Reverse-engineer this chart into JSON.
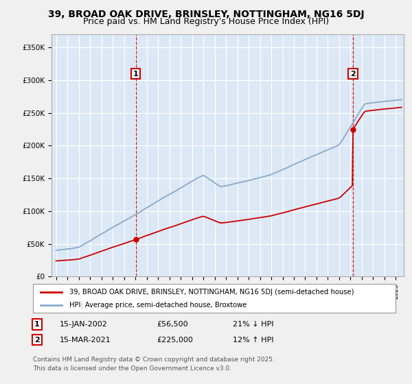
{
  "title": "39, BROAD OAK DRIVE, BRINSLEY, NOTTINGHAM, NG16 5DJ",
  "subtitle": "Price paid vs. HM Land Registry's House Price Index (HPI)",
  "ylabel_ticks": [
    "£0",
    "£50K",
    "£100K",
    "£150K",
    "£200K",
    "£250K",
    "£300K",
    "£350K"
  ],
  "ytick_values": [
    0,
    50000,
    100000,
    150000,
    200000,
    250000,
    300000,
    350000
  ],
  "ylim": [
    0,
    370000
  ],
  "xlim_start": 1994.6,
  "xlim_end": 2025.7,
  "t1": 2002.04,
  "t2": 2021.21,
  "p1": 56500,
  "p2": 225000,
  "annotation1": {
    "label": "1",
    "date": "15-JAN-2002",
    "price": "£56,500",
    "pct": "21% ↓ HPI"
  },
  "annotation2": {
    "label": "2",
    "date": "15-MAR-2021",
    "price": "£225,000",
    "pct": "12% ↑ HPI"
  },
  "legend_line1": "39, BROAD OAK DRIVE, BRINSLEY, NOTTINGHAM, NG16 5DJ (semi-detached house)",
  "legend_line2": "HPI: Average price, semi-detached house, Broxtowe",
  "footer1": "Contains HM Land Registry data © Crown copyright and database right 2025.",
  "footer2": "This data is licensed under the Open Government Licence v3.0.",
  "price_color": "#cc0000",
  "hpi_color": "#88aacc",
  "vline_color": "#cc0000",
  "background_color": "#dce8f5",
  "grid_color": "#ffffff",
  "annotation_box_color": "#cc0000",
  "fig_facecolor": "#f0f0f0"
}
